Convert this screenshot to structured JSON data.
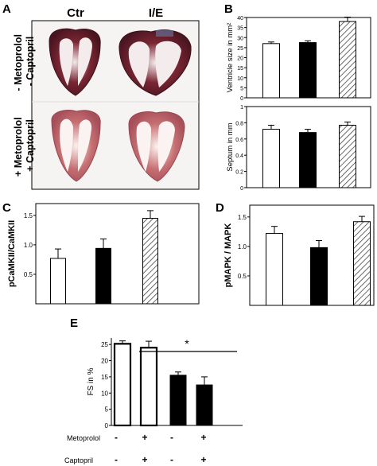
{
  "panels": {
    "A": {
      "letter": "A",
      "col_labels": [
        "Ctr",
        "I/E"
      ],
      "row_labels": [
        "- Metoprolol\n- Captopril",
        "+ Metoprolol\n+ Captopril"
      ]
    },
    "B": {
      "letter": "B"
    },
    "C": {
      "letter": "C"
    },
    "D": {
      "letter": "D"
    },
    "E": {
      "letter": "E",
      "significance": "*"
    }
  },
  "chart_data": [
    {
      "id": "B1",
      "type": "bar",
      "ylabel": "Ventricle size in mm²",
      "ylim": [
        0,
        40
      ],
      "yticks": [
        0,
        5,
        10,
        15,
        20,
        25,
        30,
        35,
        40
      ],
      "values": [
        27,
        27.5,
        38
      ],
      "errors": [
        0.8,
        0.9,
        2.2
      ],
      "fills": [
        "white",
        "black",
        "hatch"
      ]
    },
    {
      "id": "B2",
      "type": "bar",
      "ylabel": "Septum in mm",
      "ylim": [
        0,
        1.0
      ],
      "yticks": [
        0,
        0.2,
        0.4,
        0.6,
        0.8,
        1.0
      ],
      "values": [
        0.72,
        0.68,
        0.77
      ],
      "errors": [
        0.05,
        0.04,
        0.04
      ],
      "fills": [
        "white",
        "black",
        "hatch"
      ]
    },
    {
      "id": "C",
      "type": "bar",
      "ylabel": "pCaMKII/CaMKII",
      "ylim": [
        0,
        1.7
      ],
      "yticks": [
        0.5,
        1.0,
        1.5
      ],
      "ytick_labels": [
        "0.5",
        "1.0",
        "1.5"
      ],
      "values": [
        0.77,
        0.94,
        1.45
      ],
      "errors": [
        0.16,
        0.16,
        0.13
      ],
      "fills": [
        "white",
        "black",
        "hatch"
      ]
    },
    {
      "id": "D",
      "type": "bar",
      "ylabel": "pMAPK / MAPK",
      "ylim": [
        0,
        1.7
      ],
      "yticks": [
        0.5,
        1.0,
        1.5
      ],
      "ytick_labels": [
        "0.5",
        "1.0",
        "1.5"
      ],
      "values": [
        1.22,
        0.98,
        1.42
      ],
      "errors": [
        0.12,
        0.12,
        0.09
      ],
      "fills": [
        "white",
        "black",
        "hatch"
      ]
    },
    {
      "id": "E",
      "type": "bar",
      "ylabel": "FS in %",
      "ylim": [
        0,
        27
      ],
      "yticks": [
        0,
        5,
        10,
        15,
        20,
        25
      ],
      "values": [
        25.2,
        24,
        15.5,
        12.5
      ],
      "errors": [
        0.9,
        2,
        1,
        2.5
      ],
      "fills": [
        "white",
        "white",
        "black",
        "black"
      ],
      "row_labels": [
        "Metoprolol",
        "Captopril"
      ],
      "metoprolol": [
        "-",
        "+",
        "-",
        "+"
      ],
      "captopril": [
        "-",
        "+",
        "-",
        "+"
      ]
    }
  ]
}
